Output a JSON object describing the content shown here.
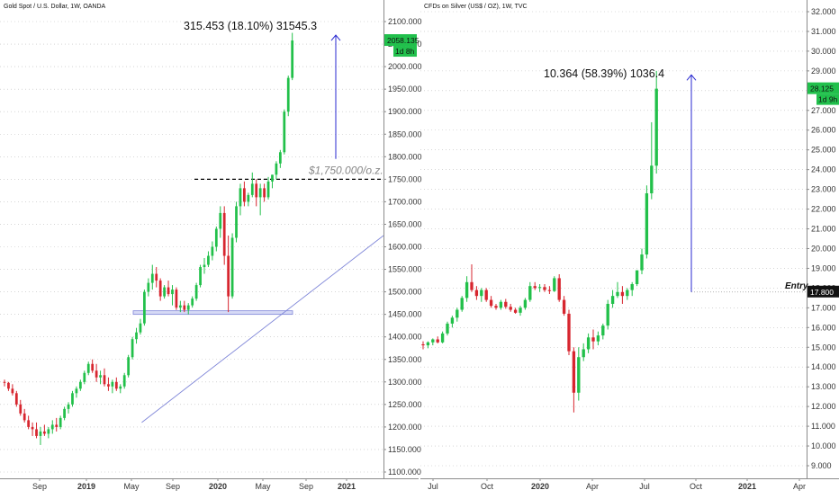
{
  "chart_data": [
    {
      "type": "candlestick",
      "title": "Gold Spot / U.S. Dollar, 1W, OANDA",
      "xlabels": [
        "Sep",
        "2019",
        "May",
        "Sep",
        "2020",
        "May",
        "Sep",
        "2021"
      ],
      "yticks": [
        "2100.000",
        "2050.000",
        "2000.000",
        "1950.000",
        "1900.000",
        "1850.000",
        "1800.000",
        "1750.000",
        "1700.000",
        "1650.000",
        "1600.000",
        "1550.000",
        "1500.000",
        "1450.000",
        "1400.000",
        "1350.000",
        "1300.000",
        "1250.000",
        "1200.000",
        "1150.000",
        "1100.000"
      ],
      "ylim": [
        1090,
        2112
      ],
      "last_price": "2058.135",
      "countdown": "1d 8h",
      "measure_label": "315.453 (18.10%) 31545.3",
      "level_label": "$1,750.000/o.z.",
      "level_value": 1750,
      "support_zone": [
        1450,
        1458
      ],
      "trendline": [
        [
          1,
          1210
        ],
        [
          8.5,
          1625
        ]
      ],
      "arrow": [
        1795,
        2070
      ],
      "candles": [
        [
          1300,
          1305,
          1290,
          1298
        ],
        [
          1298,
          1300,
          1280,
          1285
        ],
        [
          1285,
          1295,
          1270,
          1275
        ],
        [
          1275,
          1280,
          1245,
          1250
        ],
        [
          1250,
          1260,
          1225,
          1230
        ],
        [
          1230,
          1240,
          1210,
          1215
        ],
        [
          1215,
          1225,
          1195,
          1200
        ],
        [
          1200,
          1210,
          1180,
          1195
        ],
        [
          1195,
          1210,
          1175,
          1180
        ],
        [
          1180,
          1200,
          1160,
          1190
        ],
        [
          1190,
          1205,
          1180,
          1185
        ],
        [
          1185,
          1200,
          1175,
          1195
        ],
        [
          1195,
          1215,
          1185,
          1205
        ],
        [
          1205,
          1220,
          1190,
          1200
        ],
        [
          1200,
          1225,
          1195,
          1220
        ],
        [
          1220,
          1245,
          1215,
          1240
        ],
        [
          1240,
          1255,
          1230,
          1250
        ],
        [
          1250,
          1280,
          1245,
          1275
        ],
        [
          1275,
          1290,
          1265,
          1285
        ],
        [
          1285,
          1305,
          1280,
          1300
        ],
        [
          1300,
          1325,
          1295,
          1320
        ],
        [
          1320,
          1345,
          1315,
          1340
        ],
        [
          1340,
          1350,
          1320,
          1325
        ],
        [
          1325,
          1340,
          1300,
          1310
        ],
        [
          1310,
          1325,
          1295,
          1315
        ],
        [
          1315,
          1330,
          1290,
          1295
        ],
        [
          1295,
          1310,
          1280,
          1290
        ],
        [
          1290,
          1305,
          1275,
          1300
        ],
        [
          1300,
          1310,
          1280,
          1285
        ],
        [
          1285,
          1295,
          1275,
          1290
        ],
        [
          1290,
          1320,
          1285,
          1315
        ],
        [
          1315,
          1360,
          1310,
          1355
        ],
        [
          1355,
          1400,
          1350,
          1395
        ],
        [
          1395,
          1420,
          1385,
          1410
        ],
        [
          1410,
          1440,
          1405,
          1430
        ],
        [
          1430,
          1505,
          1425,
          1500
        ],
        [
          1500,
          1530,
          1490,
          1520
        ],
        [
          1520,
          1560,
          1505,
          1540
        ],
        [
          1540,
          1555,
          1510,
          1525
        ],
        [
          1525,
          1530,
          1480,
          1490
        ],
        [
          1490,
          1515,
          1485,
          1510
        ],
        [
          1510,
          1525,
          1490,
          1495
        ],
        [
          1495,
          1515,
          1470,
          1505
        ],
        [
          1505,
          1510,
          1460,
          1465
        ],
        [
          1465,
          1480,
          1455,
          1470
        ],
        [
          1470,
          1480,
          1455,
          1460
        ],
        [
          1460,
          1475,
          1450,
          1470
        ],
        [
          1470,
          1490,
          1465,
          1485
        ],
        [
          1485,
          1520,
          1480,
          1515
        ],
        [
          1515,
          1560,
          1510,
          1555
        ],
        [
          1555,
          1575,
          1540,
          1560
        ],
        [
          1560,
          1590,
          1555,
          1580
        ],
        [
          1580,
          1612,
          1570,
          1600
        ],
        [
          1600,
          1645,
          1590,
          1640
        ],
        [
          1640,
          1690,
          1620,
          1675
        ],
        [
          1675,
          1690,
          1560,
          1580
        ],
        [
          1580,
          1625,
          1455,
          1490
        ],
        [
          1490,
          1630,
          1485,
          1620
        ],
        [
          1620,
          1700,
          1610,
          1690
        ],
        [
          1690,
          1740,
          1670,
          1730
        ],
        [
          1730,
          1745,
          1690,
          1700
        ],
        [
          1700,
          1720,
          1690,
          1715
        ],
        [
          1715,
          1765,
          1710,
          1740
        ],
        [
          1740,
          1750,
          1690,
          1710
        ],
        [
          1710,
          1740,
          1670,
          1730
        ],
        [
          1730,
          1740,
          1700,
          1710
        ],
        [
          1710,
          1755,
          1705,
          1745
        ],
        [
          1745,
          1760,
          1730,
          1760
        ],
        [
          1760,
          1790,
          1750,
          1785
        ],
        [
          1785,
          1815,
          1775,
          1810
        ],
        [
          1810,
          1905,
          1805,
          1900
        ],
        [
          1900,
          1980,
          1890,
          1975
        ],
        [
          1975,
          2075,
          1970,
          2058
        ]
      ]
    },
    {
      "type": "candlestick",
      "title": "CFDs on Silver (US$ / OZ), 1W, TVC",
      "xlabels": [
        "Jul",
        "Oct",
        "2020",
        "Apr",
        "Jul",
        "Oct",
        "2021",
        "Apr"
      ],
      "yticks": [
        "32.000",
        "31.000",
        "30.000",
        "29.000",
        "28.000",
        "27.000",
        "26.000",
        "25.000",
        "24.000",
        "23.000",
        "22.000",
        "21.000",
        "20.000",
        "19.000",
        "18.000",
        "17.000",
        "16.000",
        "15.000",
        "14.000",
        "13.000",
        "12.000",
        "11.000",
        "10.000",
        "9.000"
      ],
      "ylim": [
        8.4,
        32.5
      ],
      "last_price": "28.125",
      "countdown": "1d 9h",
      "entry_label": "Entry",
      "entry_price": "17.800",
      "entry_value": 17.8,
      "measure_label": "10.364 (58.39%) 1036.4",
      "arrow": [
        17.8,
        28.8
      ],
      "candles": [
        [
          15.15,
          15.3,
          14.9,
          15.1
        ],
        [
          15.1,
          15.3,
          14.95,
          15.25
        ],
        [
          15.25,
          15.45,
          15.1,
          15.4
        ],
        [
          15.4,
          15.55,
          15.2,
          15.25
        ],
        [
          15.25,
          15.8,
          15.2,
          15.7
        ],
        [
          15.7,
          16.3,
          15.6,
          16.2
        ],
        [
          16.2,
          16.6,
          16.0,
          16.5
        ],
        [
          16.5,
          17.0,
          16.3,
          16.9
        ],
        [
          16.9,
          17.6,
          16.8,
          17.5
        ],
        [
          17.5,
          18.6,
          17.3,
          18.3
        ],
        [
          18.3,
          19.2,
          17.8,
          17.9
        ],
        [
          17.9,
          18.1,
          17.4,
          17.6
        ],
        [
          17.6,
          18.0,
          17.3,
          17.9
        ],
        [
          17.9,
          18.0,
          17.3,
          17.4
        ],
        [
          17.4,
          17.6,
          17.0,
          17.1
        ],
        [
          17.1,
          17.2,
          16.9,
          17.0
        ],
        [
          17.0,
          17.4,
          16.9,
          17.3
        ],
        [
          17.3,
          17.45,
          16.95,
          17.05
        ],
        [
          17.05,
          17.2,
          16.8,
          16.9
        ],
        [
          16.9,
          17.0,
          16.7,
          16.75
        ],
        [
          16.75,
          17.1,
          16.6,
          17.0
        ],
        [
          17.0,
          17.5,
          16.9,
          17.4
        ],
        [
          17.4,
          18.3,
          17.3,
          18.1
        ],
        [
          18.1,
          18.3,
          17.9,
          18.0
        ],
        [
          18.0,
          18.2,
          17.8,
          18.05
        ],
        [
          18.05,
          18.2,
          17.8,
          17.9
        ],
        [
          17.9,
          18.1,
          17.7,
          17.85
        ],
        [
          17.85,
          18.6,
          17.8,
          18.5
        ],
        [
          18.5,
          18.7,
          17.3,
          17.4
        ],
        [
          17.4,
          17.6,
          16.6,
          16.7
        ],
        [
          16.7,
          16.9,
          14.6,
          14.8
        ],
        [
          14.8,
          15.0,
          11.7,
          12.7
        ],
        [
          12.7,
          15.0,
          12.3,
          14.5
        ],
        [
          14.5,
          15.2,
          14.3,
          14.9
        ],
        [
          14.9,
          15.7,
          14.7,
          15.5
        ],
        [
          15.5,
          15.9,
          14.9,
          15.3
        ],
        [
          15.3,
          15.8,
          15.1,
          15.6
        ],
        [
          15.6,
          16.2,
          15.4,
          16.1
        ],
        [
          16.1,
          17.4,
          15.9,
          17.2
        ],
        [
          17.2,
          17.9,
          17.0,
          17.6
        ],
        [
          17.6,
          18.3,
          17.5,
          17.8
        ],
        [
          17.8,
          18.1,
          17.2,
          17.6
        ],
        [
          17.6,
          18.0,
          17.4,
          17.9
        ],
        [
          17.9,
          18.3,
          17.6,
          18.2
        ],
        [
          18.2,
          18.9,
          18.1,
          18.9
        ],
        [
          18.9,
          20.0,
          18.7,
          19.7
        ],
        [
          19.7,
          23.2,
          19.5,
          22.8
        ],
        [
          22.8,
          26.4,
          22.5,
          24.2
        ],
        [
          24.2,
          29.0,
          23.8,
          28.1
        ]
      ]
    }
  ]
}
